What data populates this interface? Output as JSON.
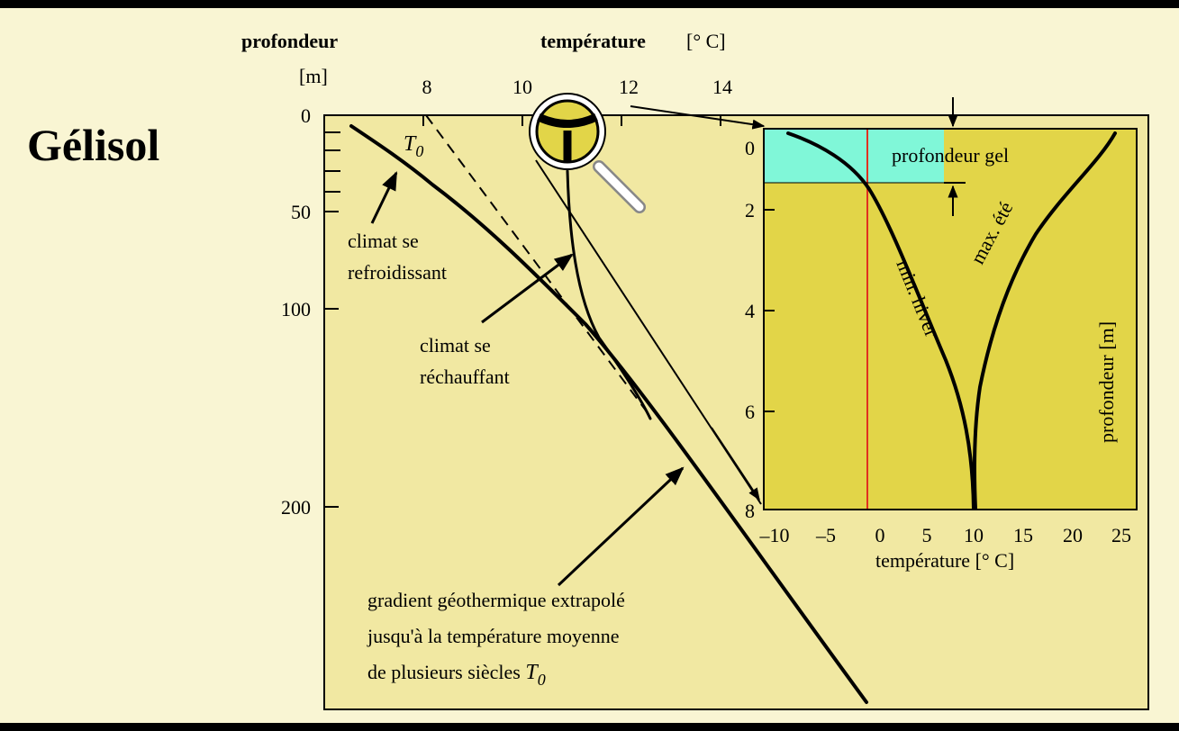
{
  "title": "Gélisol",
  "main": {
    "y_label": "profondeur",
    "y_unit": "[m]",
    "x_label": "température",
    "x_unit": "[° C]",
    "x_ticks": [
      "8",
      "10",
      "12",
      "14"
    ],
    "y_ticks": [
      "0",
      "50",
      "100",
      "200"
    ],
    "t0": {
      "symbol": "T",
      "subscript": "0"
    },
    "annotations": {
      "cooling": [
        "climat se",
        "refroidissant"
      ],
      "warming": [
        "climat se",
        "réchauffant"
      ],
      "gradient": [
        "gradient géothermique extrapolé",
        "jusqu'à la température moyenne",
        "de plusieurs siècles"
      ],
      "gradient_symbol": "T",
      "gradient_subscript": "0"
    }
  },
  "inset": {
    "y_ticks": [
      "0",
      "2",
      "4",
      "6",
      "8"
    ],
    "x_ticks": [
      "–10",
      "–5",
      "0",
      "5",
      "10",
      "15",
      "20",
      "25"
    ],
    "x_label": "température",
    "x_unit": "[° C]",
    "y_label": "profondeur",
    "y_unit": "[m]",
    "frost_depth": "profondeur gel",
    "summer": "max. été",
    "winter": "min. hiver"
  }
}
